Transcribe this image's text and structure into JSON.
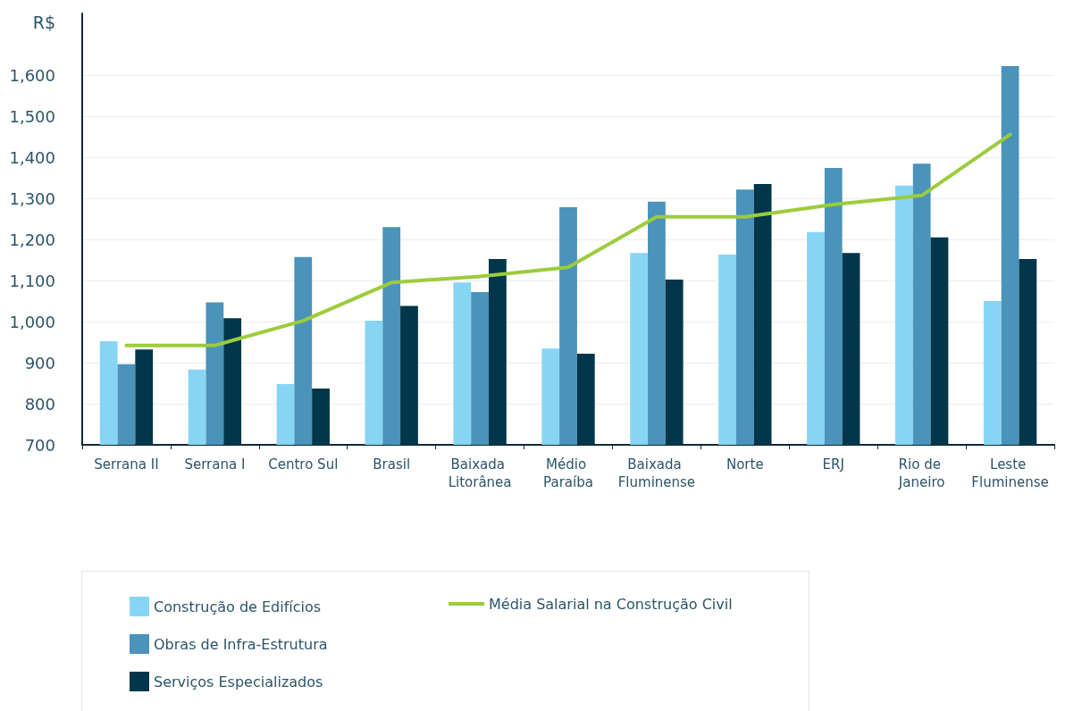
{
  "chart_data": {
    "type": "bar",
    "ylabel": "R$",
    "categories": [
      "Serrana II",
      "Serrana I",
      "Centro Sul",
      "Brasil",
      "Baixada Litorânea",
      "Médio Paraíba",
      "Baixada Fluminense",
      "Norte",
      "ERJ",
      "Rio de Janeiro",
      "Leste Fluminense"
    ],
    "series": [
      {
        "name": "Construção de Edifícios",
        "color": "#87d5f5",
        "values": [
          952,
          883,
          848,
          1002,
          1095,
          934,
          1167,
          1163,
          1218,
          1331,
          1050
        ]
      },
      {
        "name": "Obras de Infra-Estrutura",
        "color": "#4a93ba",
        "values": [
          896,
          1047,
          1157,
          1230,
          1072,
          1278,
          1292,
          1321,
          1374,
          1384,
          1622
        ]
      },
      {
        "name": "Serviços Especializados",
        "color": "#02364b",
        "values": [
          932,
          1008,
          837,
          1038,
          1152,
          922,
          1102,
          1335,
          1167,
          1205,
          1152
        ]
      },
      {
        "name": "Média Salarial na Construção Civil",
        "type": "line",
        "color": "#9ccc3c",
        "values": [
          942,
          942,
          1002,
          1095,
          1110,
          1132,
          1255,
          1255,
          1285,
          1307,
          1455
        ]
      }
    ],
    "ylim": [
      700,
      1750
    ],
    "yticks": [
      700,
      800,
      900,
      {
        "value": 1000,
        "label": "1,000"
      },
      {
        "value": 1100,
        "label": "1,100"
      },
      {
        "value": 1200,
        "label": "1,200"
      },
      {
        "value": 1300,
        "label": "1,300"
      },
      {
        "value": 1400,
        "label": "1,400"
      },
      {
        "value": 1500,
        "label": "1,500"
      },
      {
        "value": 1600,
        "label": "1,600"
      }
    ],
    "grid": "y",
    "legend": "bottom",
    "marker": "none"
  }
}
